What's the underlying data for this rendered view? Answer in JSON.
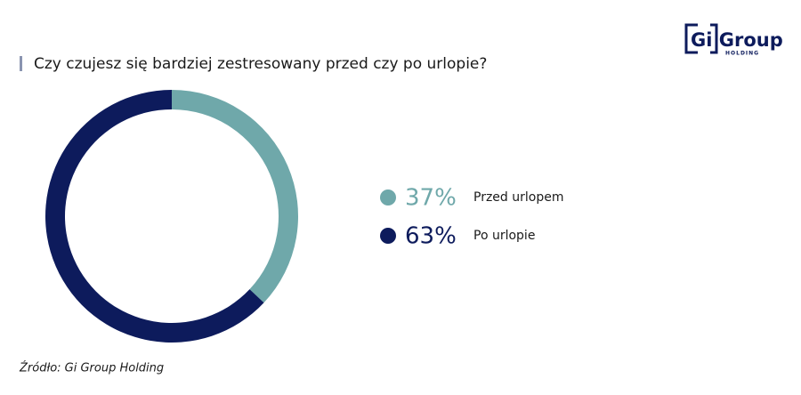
{
  "chart_data": {
    "type": "donut",
    "title": "Czy czujesz się bardziej zestresowany przed czy po urlopie?",
    "categories": [
      "Przed urlopem",
      "Po urlopie"
    ],
    "values": [
      37,
      63
    ],
    "value_labels": [
      "37%",
      "63%"
    ],
    "colors": [
      "#6fa8aa",
      "#0d1b5c"
    ],
    "source": "Źródło: Gi Group Holding"
  },
  "logo": {
    "name": "Gi Group",
    "sub": "HOLDING"
  }
}
